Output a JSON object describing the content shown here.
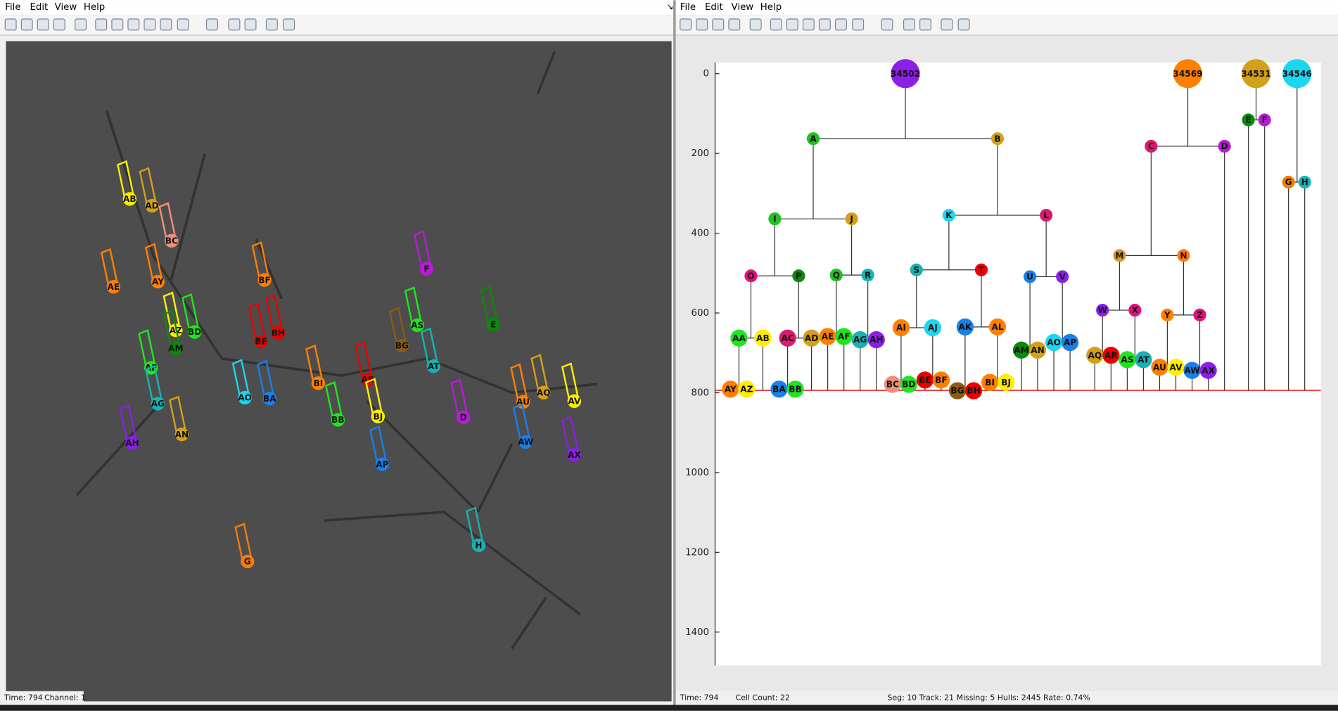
{
  "left_window": {
    "menu": [
      "File",
      "Edit",
      "View",
      "Help"
    ],
    "status": [
      "Time: 794",
      "Channel: 1"
    ]
  },
  "right_window": {
    "menu": [
      "File",
      "Edit",
      "View",
      "Help"
    ],
    "status": [
      "Time: 794",
      "Cell Count: 22",
      "Seg: 10 Track: 21 Missing: 5 Hulls: 2445 Rate: 0.74%"
    ]
  },
  "tree": {
    "ylim": [
      -28,
      1484
    ],
    "yticks": [
      0,
      200,
      400,
      600,
      800,
      1000,
      1200,
      1400
    ],
    "current_time": 794,
    "nodes": [
      {
        "label": "34502",
        "time": 0,
        "parent": null,
        "color": "#8b1fe8"
      },
      {
        "label": "34569",
        "time": 0,
        "parent": null,
        "color": "#ff8000"
      },
      {
        "label": "34531",
        "time": 0,
        "parent": null,
        "color": "#d4a017"
      },
      {
        "label": "34546",
        "time": 0,
        "parent": null,
        "color": "#1ad6f0"
      },
      {
        "label": "A",
        "time": 163,
        "parent": 0,
        "color": "#22c022"
      },
      {
        "label": "B",
        "time": 163,
        "parent": 0,
        "color": "#d4a017"
      },
      {
        "label": "C",
        "time": 182,
        "parent": 1,
        "color": "#d81b6e"
      },
      {
        "label": "D",
        "time": 182,
        "parent": 1,
        "color": "#b81bd6"
      },
      {
        "label": "E",
        "time": 116,
        "parent": 2,
        "color": "#0a8a0a"
      },
      {
        "label": "F",
        "time": 116,
        "parent": 2,
        "color": "#b81bd6"
      },
      {
        "label": "G",
        "time": 272,
        "parent": 3,
        "color": "#f07d0a"
      },
      {
        "label": "H",
        "time": 272,
        "parent": 3,
        "color": "#17b3b3"
      },
      {
        "label": "I",
        "time": 364,
        "parent": 4,
        "color": "#22c022"
      },
      {
        "label": "J",
        "time": 364,
        "parent": 4,
        "color": "#d4a017"
      },
      {
        "label": "K",
        "time": 355,
        "parent": 5,
        "color": "#1ad6f0"
      },
      {
        "label": "L",
        "time": 355,
        "parent": 5,
        "color": "#d81b6e"
      },
      {
        "label": "M",
        "time": 456,
        "parent": 6,
        "color": "#d4a017"
      },
      {
        "label": "N",
        "time": 456,
        "parent": 6,
        "color": "#ff8000"
      },
      {
        "label": "O",
        "time": 507,
        "parent": 12,
        "color": "#e0127a"
      },
      {
        "label": "P",
        "time": 507,
        "parent": 12,
        "color": "#0a8a0a"
      },
      {
        "label": "Q",
        "time": 505,
        "parent": 13,
        "color": "#22c022"
      },
      {
        "label": "R",
        "time": 505,
        "parent": 13,
        "color": "#17b3b3"
      },
      {
        "label": "S",
        "time": 492,
        "parent": 14,
        "color": "#17b3b3"
      },
      {
        "label": "T",
        "time": 492,
        "parent": 14,
        "color": "#ee0000"
      },
      {
        "label": "U",
        "time": 509,
        "parent": 15,
        "color": "#1a7fe8"
      },
      {
        "label": "V",
        "time": 509,
        "parent": 15,
        "color": "#8b1fe8"
      },
      {
        "label": "W",
        "time": 593,
        "parent": 16,
        "color": "#8b1fe8"
      },
      {
        "label": "X",
        "time": 593,
        "parent": 16,
        "color": "#e0127a"
      },
      {
        "label": "Y",
        "time": 605,
        "parent": 17,
        "color": "#ff8000"
      },
      {
        "label": "Z",
        "time": 605,
        "parent": 17,
        "color": "#e0127a"
      },
      {
        "label": "AA",
        "time": 663,
        "parent": 18,
        "color": "#1ee61e"
      },
      {
        "label": "AB",
        "time": 663,
        "parent": 18,
        "color": "#ffee00"
      },
      {
        "label": "AC",
        "time": 663,
        "parent": 19,
        "color": "#d81b6e"
      },
      {
        "label": "AD",
        "time": 663,
        "parent": 19,
        "color": "#d4a017"
      },
      {
        "label": "AE",
        "time": 659,
        "parent": 20,
        "color": "#ff8000"
      },
      {
        "label": "AF",
        "time": 659,
        "parent": 20,
        "color": "#1ee61e"
      },
      {
        "label": "AG",
        "time": 667,
        "parent": 21,
        "color": "#17b3b3"
      },
      {
        "label": "AH",
        "time": 667,
        "parent": 21,
        "color": "#8b1fe8"
      },
      {
        "label": "AI",
        "time": 637,
        "parent": 22,
        "color": "#ff8000"
      },
      {
        "label": "AJ",
        "time": 637,
        "parent": 22,
        "color": "#1ad6f0"
      },
      {
        "label": "AK",
        "time": 635,
        "parent": 23,
        "color": "#1a7fe8"
      },
      {
        "label": "AL",
        "time": 635,
        "parent": 23,
        "color": "#ff8000"
      },
      {
        "label": "AM",
        "time": 693,
        "parent": 24,
        "color": "#0a8a0a"
      },
      {
        "label": "AN",
        "time": 693,
        "parent": 24,
        "color": "#d4a017"
      },
      {
        "label": "AO",
        "time": 674,
        "parent": 25,
        "color": "#1ad6f0"
      },
      {
        "label": "AP",
        "time": 674,
        "parent": 25,
        "color": "#1a7fe8"
      },
      {
        "label": "AQ",
        "time": 706,
        "parent": 26,
        "color": "#d4a017"
      },
      {
        "label": "AR",
        "time": 706,
        "parent": 26,
        "color": "#ee0000"
      },
      {
        "label": "AS",
        "time": 717,
        "parent": 27,
        "color": "#1ee61e"
      },
      {
        "label": "AT",
        "time": 717,
        "parent": 27,
        "color": "#17b3b3"
      },
      {
        "label": "AU",
        "time": 736,
        "parent": 28,
        "color": "#ff8000"
      },
      {
        "label": "AV",
        "time": 736,
        "parent": 28,
        "color": "#ffee00"
      },
      {
        "label": "AW",
        "time": 744,
        "parent": 29,
        "color": "#1a7fe8"
      },
      {
        "label": "AX",
        "time": 744,
        "parent": 29,
        "color": "#8b1fe8"
      },
      {
        "label": "AY",
        "time": 791,
        "parent": 30,
        "color": "#ff8000"
      },
      {
        "label": "AZ",
        "time": 791,
        "parent": 30,
        "color": "#ffee00"
      },
      {
        "label": "BA",
        "time": 791,
        "parent": 32,
        "color": "#1a7fe8"
      },
      {
        "label": "BB",
        "time": 791,
        "parent": 32,
        "color": "#1ee61e"
      },
      {
        "label": "BC",
        "time": 779,
        "parent": 38,
        "color": "#f0907a"
      },
      {
        "label": "BD",
        "time": 779,
        "parent": 38,
        "color": "#1ee61e"
      },
      {
        "label": "BE",
        "time": 768,
        "parent": 39,
        "color": "#ee0000"
      },
      {
        "label": "BF",
        "time": 768,
        "parent": 39,
        "color": "#ff8000"
      },
      {
        "label": "BG",
        "time": 795,
        "parent": 40,
        "color": "#8b5a14"
      },
      {
        "label": "BH",
        "time": 795,
        "parent": 40,
        "color": "#ee0000"
      },
      {
        "label": "BI",
        "time": 774,
        "parent": 41,
        "color": "#ff8000"
      },
      {
        "label": "BJ",
        "time": 774,
        "parent": 41,
        "color": "#ffee00"
      }
    ]
  }
}
